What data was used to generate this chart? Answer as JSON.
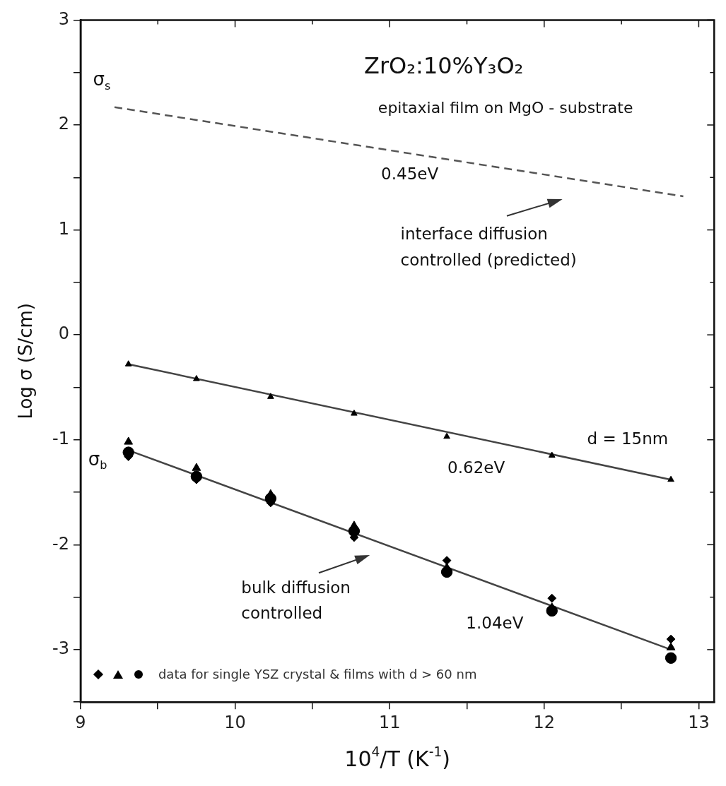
{
  "chart_data": {
    "type": "scatter",
    "title": "ZrO₂:10%Y₃O₂",
    "subtitle": "epitaxial film on MgO - substrate",
    "xlabel": "10$^{4}$/T (K$^{-1}$)",
    "ylabel": "Log σ (S/cm)",
    "xlim": [
      9,
      13.1
    ],
    "xticks": [
      9,
      {
        "value": 9.5,
        "label": null
      },
      10,
      {
        "value": 10.5,
        "label": null
      },
      11,
      {
        "value": 11.5,
        "label": null
      },
      12,
      {
        "value": 12.5,
        "label": null
      },
      13
    ],
    "ylim": [
      -3.5,
      3
    ],
    "yticks": [
      {
        "value": -3.5,
        "label": null
      },
      -3,
      {
        "value": -2.5,
        "label": null
      },
      -2,
      {
        "value": -1.5,
        "label": null
      },
      -1,
      {
        "value": -0.5,
        "label": null
      },
      0,
      {
        "value": 0.5,
        "label": null
      },
      1,
      {
        "value": 1.5,
        "label": null
      },
      2,
      {
        "value": 2.5,
        "label": null
      },
      3
    ],
    "grid": false,
    "legend": "bottom left",
    "annotations": [
      "σ$_{s}$",
      "0.45eV",
      "interface diffusion controlled (predicted)",
      "σ$_{b}$",
      "d = 15nm",
      "0.62eV",
      "bulk diffusion controlled",
      "1.04eV"
    ],
    "series": [
      {
        "color": "#000000",
        "marker": "triangle",
        "x": [
          9.31,
          9.75,
          10.23,
          10.77,
          11.37,
          12.05,
          12.82
        ],
        "values": [
          -0.28,
          -0.42,
          -0.59,
          -0.75,
          -0.97,
          -1.15,
          -1.38
        ]
      },
      {
        "name": "data for single YSZ crystal & films with d > 60 nm",
        "color": "#000000",
        "marker": "diamond",
        "x": [
          9.31,
          9.75,
          10.23,
          10.77,
          11.37,
          12.05,
          12.82
        ],
        "values": [
          -1.16,
          -1.38,
          -1.6,
          -1.93,
          -2.15,
          -2.51,
          -2.9
        ]
      },
      {
        "color": "#000000",
        "marker": "triangle",
        "x": [
          9.31,
          9.75,
          10.23,
          10.77,
          11.37,
          12.05,
          12.82
        ],
        "values": [
          -1.02,
          -1.27,
          -1.52,
          -1.82,
          -2.22,
          -2.6,
          -2.98
        ]
      },
      {
        "color": "#000000",
        "marker": "circle",
        "x": [
          9.31,
          9.75,
          10.23,
          10.77,
          11.37,
          12.05,
          12.82
        ],
        "values": [
          -1.12,
          -1.35,
          -1.56,
          -1.87,
          -2.26,
          -2.63,
          -3.08
        ]
      },
      {
        "type": "line",
        "color": "#555555",
        "marker": "none",
        "line_style": "dashed",
        "x": [
          9.22,
          12.9
        ],
        "values": [
          2.17,
          1.32
        ]
      },
      {
        "type": "line",
        "color": "#444444",
        "marker": "none",
        "line_style": "solid",
        "x": [
          9.31,
          12.82
        ],
        "values": [
          -0.28,
          -1.38
        ]
      },
      {
        "type": "line",
        "color": "#444444",
        "marker": "none",
        "line_style": "solid",
        "x": [
          9.31,
          12.82
        ],
        "values": [
          -1.1,
          -3.0
        ]
      }
    ]
  }
}
